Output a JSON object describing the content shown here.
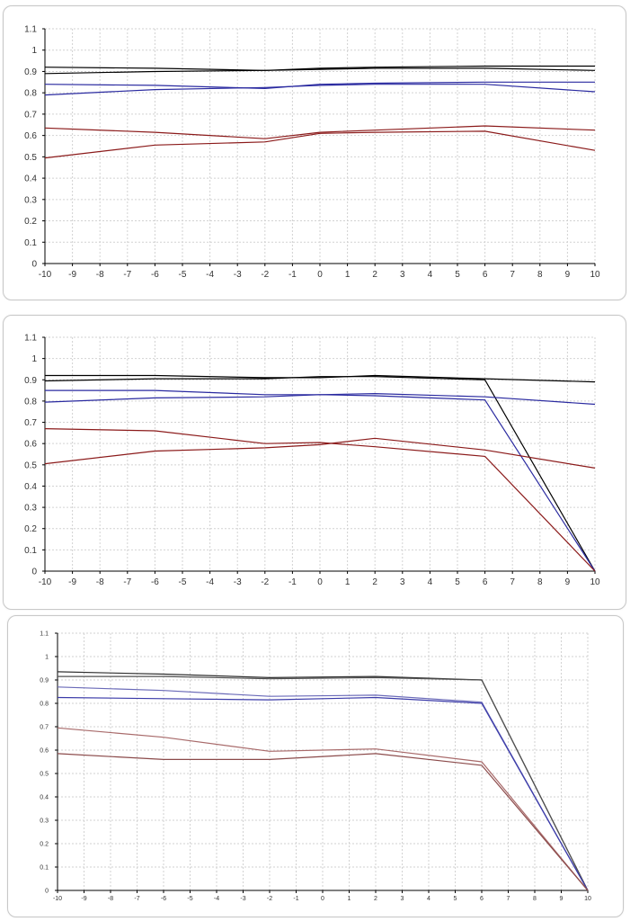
{
  "chart_data": [
    {
      "type": "line",
      "xlim": [
        -10,
        10
      ],
      "ylim": [
        0,
        1.1
      ],
      "grid": true,
      "x_ticks": [
        "-10",
        "-9",
        "-8",
        "-7",
        "-6",
        "-5",
        "-4",
        "-3",
        "-2",
        "-1",
        "0",
        "1",
        "2",
        "3",
        "4",
        "5",
        "6",
        "7",
        "8",
        "9",
        "10"
      ],
      "y_ticks": [
        "0",
        "0.1",
        "0.2",
        "0.3",
        "0.4",
        "0.5",
        "0.6",
        "0.7",
        "0.8",
        "0.9",
        "1",
        "1.1"
      ],
      "series": [
        {
          "color": "#000000",
          "x": [
            -10,
            -6,
            -2,
            0,
            2,
            6,
            10
          ],
          "y": [
            0.92,
            0.915,
            0.905,
            0.915,
            0.92,
            0.925,
            0.925
          ]
        },
        {
          "color": "#000000",
          "x": [
            -10,
            -6,
            -2,
            0,
            2,
            6,
            10
          ],
          "y": [
            0.89,
            0.9,
            0.905,
            0.91,
            0.915,
            0.915,
            0.905
          ]
        },
        {
          "color": "#2a2aa0",
          "x": [
            -10,
            -6,
            -2,
            0,
            2,
            6,
            10
          ],
          "y": [
            0.84,
            0.835,
            0.82,
            0.84,
            0.845,
            0.85,
            0.85
          ]
        },
        {
          "color": "#2a2aa0",
          "x": [
            -10,
            -6,
            -2,
            0,
            2,
            6,
            10
          ],
          "y": [
            0.79,
            0.815,
            0.825,
            0.835,
            0.84,
            0.84,
            0.805
          ]
        },
        {
          "color": "#8b1a1a",
          "x": [
            -10,
            -6,
            -2,
            0,
            2,
            6,
            10
          ],
          "y": [
            0.635,
            0.615,
            0.585,
            0.615,
            0.625,
            0.645,
            0.625
          ]
        },
        {
          "color": "#8b1a1a",
          "x": [
            -10,
            -6,
            -2,
            0,
            2,
            6,
            10
          ],
          "y": [
            0.495,
            0.555,
            0.57,
            0.61,
            0.615,
            0.62,
            0.53
          ]
        }
      ]
    },
    {
      "type": "line",
      "xlim": [
        -10,
        10
      ],
      "ylim": [
        0,
        1.1
      ],
      "grid": true,
      "x_ticks": [
        "-10",
        "-9",
        "-8",
        "-7",
        "-6",
        "-5",
        "-4",
        "-3",
        "-2",
        "-1",
        "0",
        "1",
        "2",
        "3",
        "4",
        "5",
        "6",
        "7",
        "8",
        "9",
        "10"
      ],
      "y_ticks": [
        "0",
        "0.1",
        "0.2",
        "0.3",
        "0.4",
        "0.5",
        "0.6",
        "0.7",
        "0.8",
        "0.9",
        "1",
        "1.1"
      ],
      "series": [
        {
          "color": "#000000",
          "x": [
            -10,
            -6,
            -2,
            0,
            2,
            6,
            10
          ],
          "y": [
            0.92,
            0.92,
            0.91,
            0.91,
            0.92,
            0.905,
            0.89
          ]
        },
        {
          "color": "#000000",
          "x": [
            -10,
            -6,
            -2,
            0,
            2,
            6,
            10
          ],
          "y": [
            0.895,
            0.905,
            0.905,
            0.915,
            0.915,
            0.9,
            0.0
          ]
        },
        {
          "color": "#2a2aa0",
          "x": [
            -10,
            -6,
            -2,
            0,
            2,
            6,
            10
          ],
          "y": [
            0.85,
            0.85,
            0.83,
            0.83,
            0.835,
            0.82,
            0.785
          ]
        },
        {
          "color": "#2a2aa0",
          "x": [
            -10,
            -6,
            -2,
            0,
            2,
            6,
            10
          ],
          "y": [
            0.795,
            0.815,
            0.82,
            0.83,
            0.825,
            0.805,
            0.0
          ]
        },
        {
          "color": "#8b1a1a",
          "x": [
            -10,
            -6,
            -2,
            0,
            2,
            6,
            10
          ],
          "y": [
            0.67,
            0.66,
            0.6,
            0.605,
            0.585,
            0.54,
            0.0
          ]
        },
        {
          "color": "#8b1a1a",
          "x": [
            -10,
            -6,
            -2,
            0,
            2,
            6,
            10
          ],
          "y": [
            0.505,
            0.565,
            0.58,
            0.595,
            0.625,
            0.57,
            0.485
          ]
        }
      ]
    },
    {
      "type": "line",
      "xlim": [
        -10,
        10
      ],
      "ylim": [
        0,
        1.1
      ],
      "grid": true,
      "x_ticks": [
        "-10",
        "-9",
        "-8",
        "-7",
        "-6",
        "-5",
        "-4",
        "-3",
        "-2",
        "-1",
        "0",
        "1",
        "2",
        "3",
        "4",
        "5",
        "6",
        "7",
        "8",
        "9",
        "10"
      ],
      "y_ticks": [
        "0",
        "0.1",
        "0.2",
        "0.3",
        "0.4",
        "0.5",
        "0.6",
        "0.7",
        "0.8",
        "0.9",
        "1",
        "1.1"
      ],
      "series": [
        {
          "color": "#303030",
          "x": [
            -10,
            -6,
            -2,
            2,
            6,
            10
          ],
          "y": [
            0.935,
            0.925,
            0.91,
            0.915,
            0.9,
            0.0
          ]
        },
        {
          "color": "#505050",
          "x": [
            -10,
            -6,
            -2,
            2,
            6,
            10
          ],
          "y": [
            0.915,
            0.915,
            0.905,
            0.91,
            0.9,
            0.0
          ]
        },
        {
          "color": "#6a6ab8",
          "x": [
            -10,
            -6,
            -2,
            2,
            6,
            10
          ],
          "y": [
            0.87,
            0.855,
            0.83,
            0.835,
            0.805,
            0.0
          ]
        },
        {
          "color": "#3a3aa8",
          "x": [
            -10,
            -6,
            -2,
            2,
            6,
            10
          ],
          "y": [
            0.825,
            0.82,
            0.815,
            0.825,
            0.8,
            0.0
          ]
        },
        {
          "color": "#a86a6a",
          "x": [
            -10,
            -6,
            -2,
            2,
            6,
            10
          ],
          "y": [
            0.695,
            0.655,
            0.595,
            0.605,
            0.55,
            0.0
          ]
        },
        {
          "color": "#8b4a4a",
          "x": [
            -10,
            -6,
            -2,
            2,
            6,
            10
          ],
          "y": [
            0.585,
            0.56,
            0.56,
            0.585,
            0.535,
            0.0
          ]
        }
      ]
    }
  ]
}
